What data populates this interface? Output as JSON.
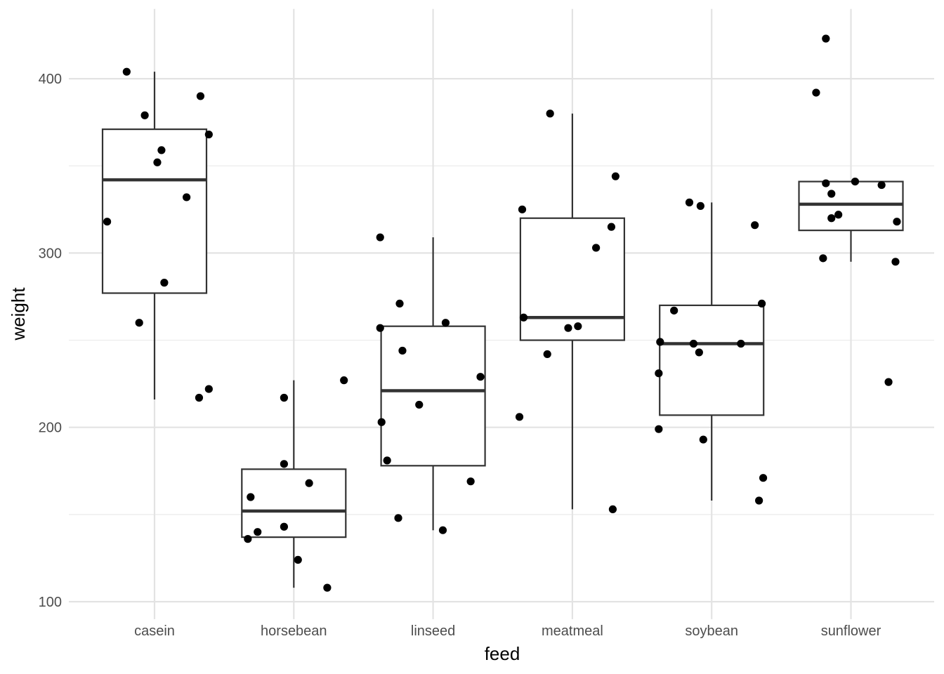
{
  "chart_data": {
    "type": "boxplot",
    "xlabel": "feed",
    "ylabel": "weight",
    "categories": [
      "casein",
      "horsebean",
      "linseed",
      "meatmeal",
      "soybean",
      "sunflower"
    ],
    "ylim": [
      90,
      440
    ],
    "yticks": [
      100,
      200,
      300,
      400
    ],
    "grid": true,
    "boxes": [
      {
        "category": "casein",
        "whisker_low": 216,
        "q1": 277,
        "median": 342,
        "q3": 371,
        "whisker_high": 404
      },
      {
        "category": "horsebean",
        "whisker_low": 108,
        "q1": 137,
        "median": 152,
        "q3": 176,
        "whisker_high": 227
      },
      {
        "category": "linseed",
        "whisker_low": 141,
        "q1": 178,
        "median": 221,
        "q3": 258,
        "whisker_high": 309
      },
      {
        "category": "meatmeal",
        "whisker_low": 153,
        "q1": 250,
        "median": 263,
        "q3": 320,
        "whisker_high": 380
      },
      {
        "category": "soybean",
        "whisker_low": 158,
        "q1": 207,
        "median": 248,
        "q3": 270,
        "whisker_high": 329
      },
      {
        "category": "sunflower",
        "whisker_low": 295,
        "q1": 313,
        "median": 328,
        "q3": 341,
        "whisker_high": 341
      }
    ],
    "points": [
      {
        "category": "casein",
        "x_offset": -0.34,
        "y": 318
      },
      {
        "category": "casein",
        "x_offset": -0.2,
        "y": 404
      },
      {
        "category": "casein",
        "x_offset": -0.11,
        "y": 260
      },
      {
        "category": "casein",
        "x_offset": -0.07,
        "y": 379
      },
      {
        "category": "casein",
        "x_offset": 0.02,
        "y": 352
      },
      {
        "category": "casein",
        "x_offset": 0.05,
        "y": 359
      },
      {
        "category": "casein",
        "x_offset": 0.07,
        "y": 283
      },
      {
        "category": "casein",
        "x_offset": 0.23,
        "y": 332
      },
      {
        "category": "casein",
        "x_offset": 0.32,
        "y": 217
      },
      {
        "category": "casein",
        "x_offset": 0.33,
        "y": 390
      },
      {
        "category": "casein",
        "x_offset": 0.39,
        "y": 222
      },
      {
        "category": "casein",
        "x_offset": 0.39,
        "y": 368
      },
      {
        "category": "horsebean",
        "x_offset": -0.33,
        "y": 136
      },
      {
        "category": "horsebean",
        "x_offset": -0.31,
        "y": 160
      },
      {
        "category": "horsebean",
        "x_offset": -0.26,
        "y": 140
      },
      {
        "category": "horsebean",
        "x_offset": -0.07,
        "y": 143
      },
      {
        "category": "horsebean",
        "x_offset": -0.07,
        "y": 179
      },
      {
        "category": "horsebean",
        "x_offset": -0.07,
        "y": 217
      },
      {
        "category": "horsebean",
        "x_offset": 0.03,
        "y": 124
      },
      {
        "category": "horsebean",
        "x_offset": 0.11,
        "y": 168
      },
      {
        "category": "horsebean",
        "x_offset": 0.24,
        "y": 108
      },
      {
        "category": "horsebean",
        "x_offset": 0.36,
        "y": 227
      },
      {
        "category": "linseed",
        "x_offset": -0.38,
        "y": 309
      },
      {
        "category": "linseed",
        "x_offset": -0.38,
        "y": 257
      },
      {
        "category": "linseed",
        "x_offset": -0.37,
        "y": 203
      },
      {
        "category": "linseed",
        "x_offset": -0.33,
        "y": 181
      },
      {
        "category": "linseed",
        "x_offset": -0.25,
        "y": 148
      },
      {
        "category": "linseed",
        "x_offset": -0.24,
        "y": 271
      },
      {
        "category": "linseed",
        "x_offset": -0.22,
        "y": 244
      },
      {
        "category": "linseed",
        "x_offset": -0.1,
        "y": 213
      },
      {
        "category": "linseed",
        "x_offset": 0.07,
        "y": 141
      },
      {
        "category": "linseed",
        "x_offset": 0.09,
        "y": 260
      },
      {
        "category": "linseed",
        "x_offset": 0.27,
        "y": 169
      },
      {
        "category": "linseed",
        "x_offset": 0.34,
        "y": 229
      },
      {
        "category": "meatmeal",
        "x_offset": -0.38,
        "y": 206
      },
      {
        "category": "meatmeal",
        "x_offset": -0.36,
        "y": 325
      },
      {
        "category": "meatmeal",
        "x_offset": -0.35,
        "y": 263
      },
      {
        "category": "meatmeal",
        "x_offset": -0.18,
        "y": 242
      },
      {
        "category": "meatmeal",
        "x_offset": -0.16,
        "y": 380
      },
      {
        "category": "meatmeal",
        "x_offset": -0.03,
        "y": 257
      },
      {
        "category": "meatmeal",
        "x_offset": 0.04,
        "y": 258
      },
      {
        "category": "meatmeal",
        "x_offset": 0.17,
        "y": 303
      },
      {
        "category": "meatmeal",
        "x_offset": 0.29,
        "y": 153
      },
      {
        "category": "meatmeal",
        "x_offset": 0.28,
        "y": 315
      },
      {
        "category": "meatmeal",
        "x_offset": 0.31,
        "y": 344
      },
      {
        "category": "soybean",
        "x_offset": -0.38,
        "y": 199
      },
      {
        "category": "soybean",
        "x_offset": -0.38,
        "y": 231
      },
      {
        "category": "soybean",
        "x_offset": -0.37,
        "y": 249
      },
      {
        "category": "soybean",
        "x_offset": -0.27,
        "y": 267
      },
      {
        "category": "soybean",
        "x_offset": -0.16,
        "y": 329
      },
      {
        "category": "soybean",
        "x_offset": -0.13,
        "y": 248
      },
      {
        "category": "soybean",
        "x_offset": -0.09,
        "y": 243
      },
      {
        "category": "soybean",
        "x_offset": -0.08,
        "y": 327
      },
      {
        "category": "soybean",
        "x_offset": -0.06,
        "y": 193
      },
      {
        "category": "soybean",
        "x_offset": 0.21,
        "y": 248
      },
      {
        "category": "soybean",
        "x_offset": 0.31,
        "y": 316
      },
      {
        "category": "soybean",
        "x_offset": 0.34,
        "y": 158
      },
      {
        "category": "soybean",
        "x_offset": 0.36,
        "y": 271
      },
      {
        "category": "soybean",
        "x_offset": 0.37,
        "y": 171
      },
      {
        "category": "sunflower",
        "x_offset": -0.25,
        "y": 392
      },
      {
        "category": "sunflower",
        "x_offset": -0.2,
        "y": 297
      },
      {
        "category": "sunflower",
        "x_offset": -0.18,
        "y": 423
      },
      {
        "category": "sunflower",
        "x_offset": -0.18,
        "y": 340
      },
      {
        "category": "sunflower",
        "x_offset": -0.14,
        "y": 334
      },
      {
        "category": "sunflower",
        "x_offset": -0.14,
        "y": 320
      },
      {
        "category": "sunflower",
        "x_offset": -0.09,
        "y": 322
      },
      {
        "category": "sunflower",
        "x_offset": 0.03,
        "y": 341
      },
      {
        "category": "sunflower",
        "x_offset": 0.22,
        "y": 339
      },
      {
        "category": "sunflower",
        "x_offset": 0.27,
        "y": 226
      },
      {
        "category": "sunflower",
        "x_offset": 0.32,
        "y": 295
      },
      {
        "category": "sunflower",
        "x_offset": 0.33,
        "y": 318
      }
    ]
  }
}
